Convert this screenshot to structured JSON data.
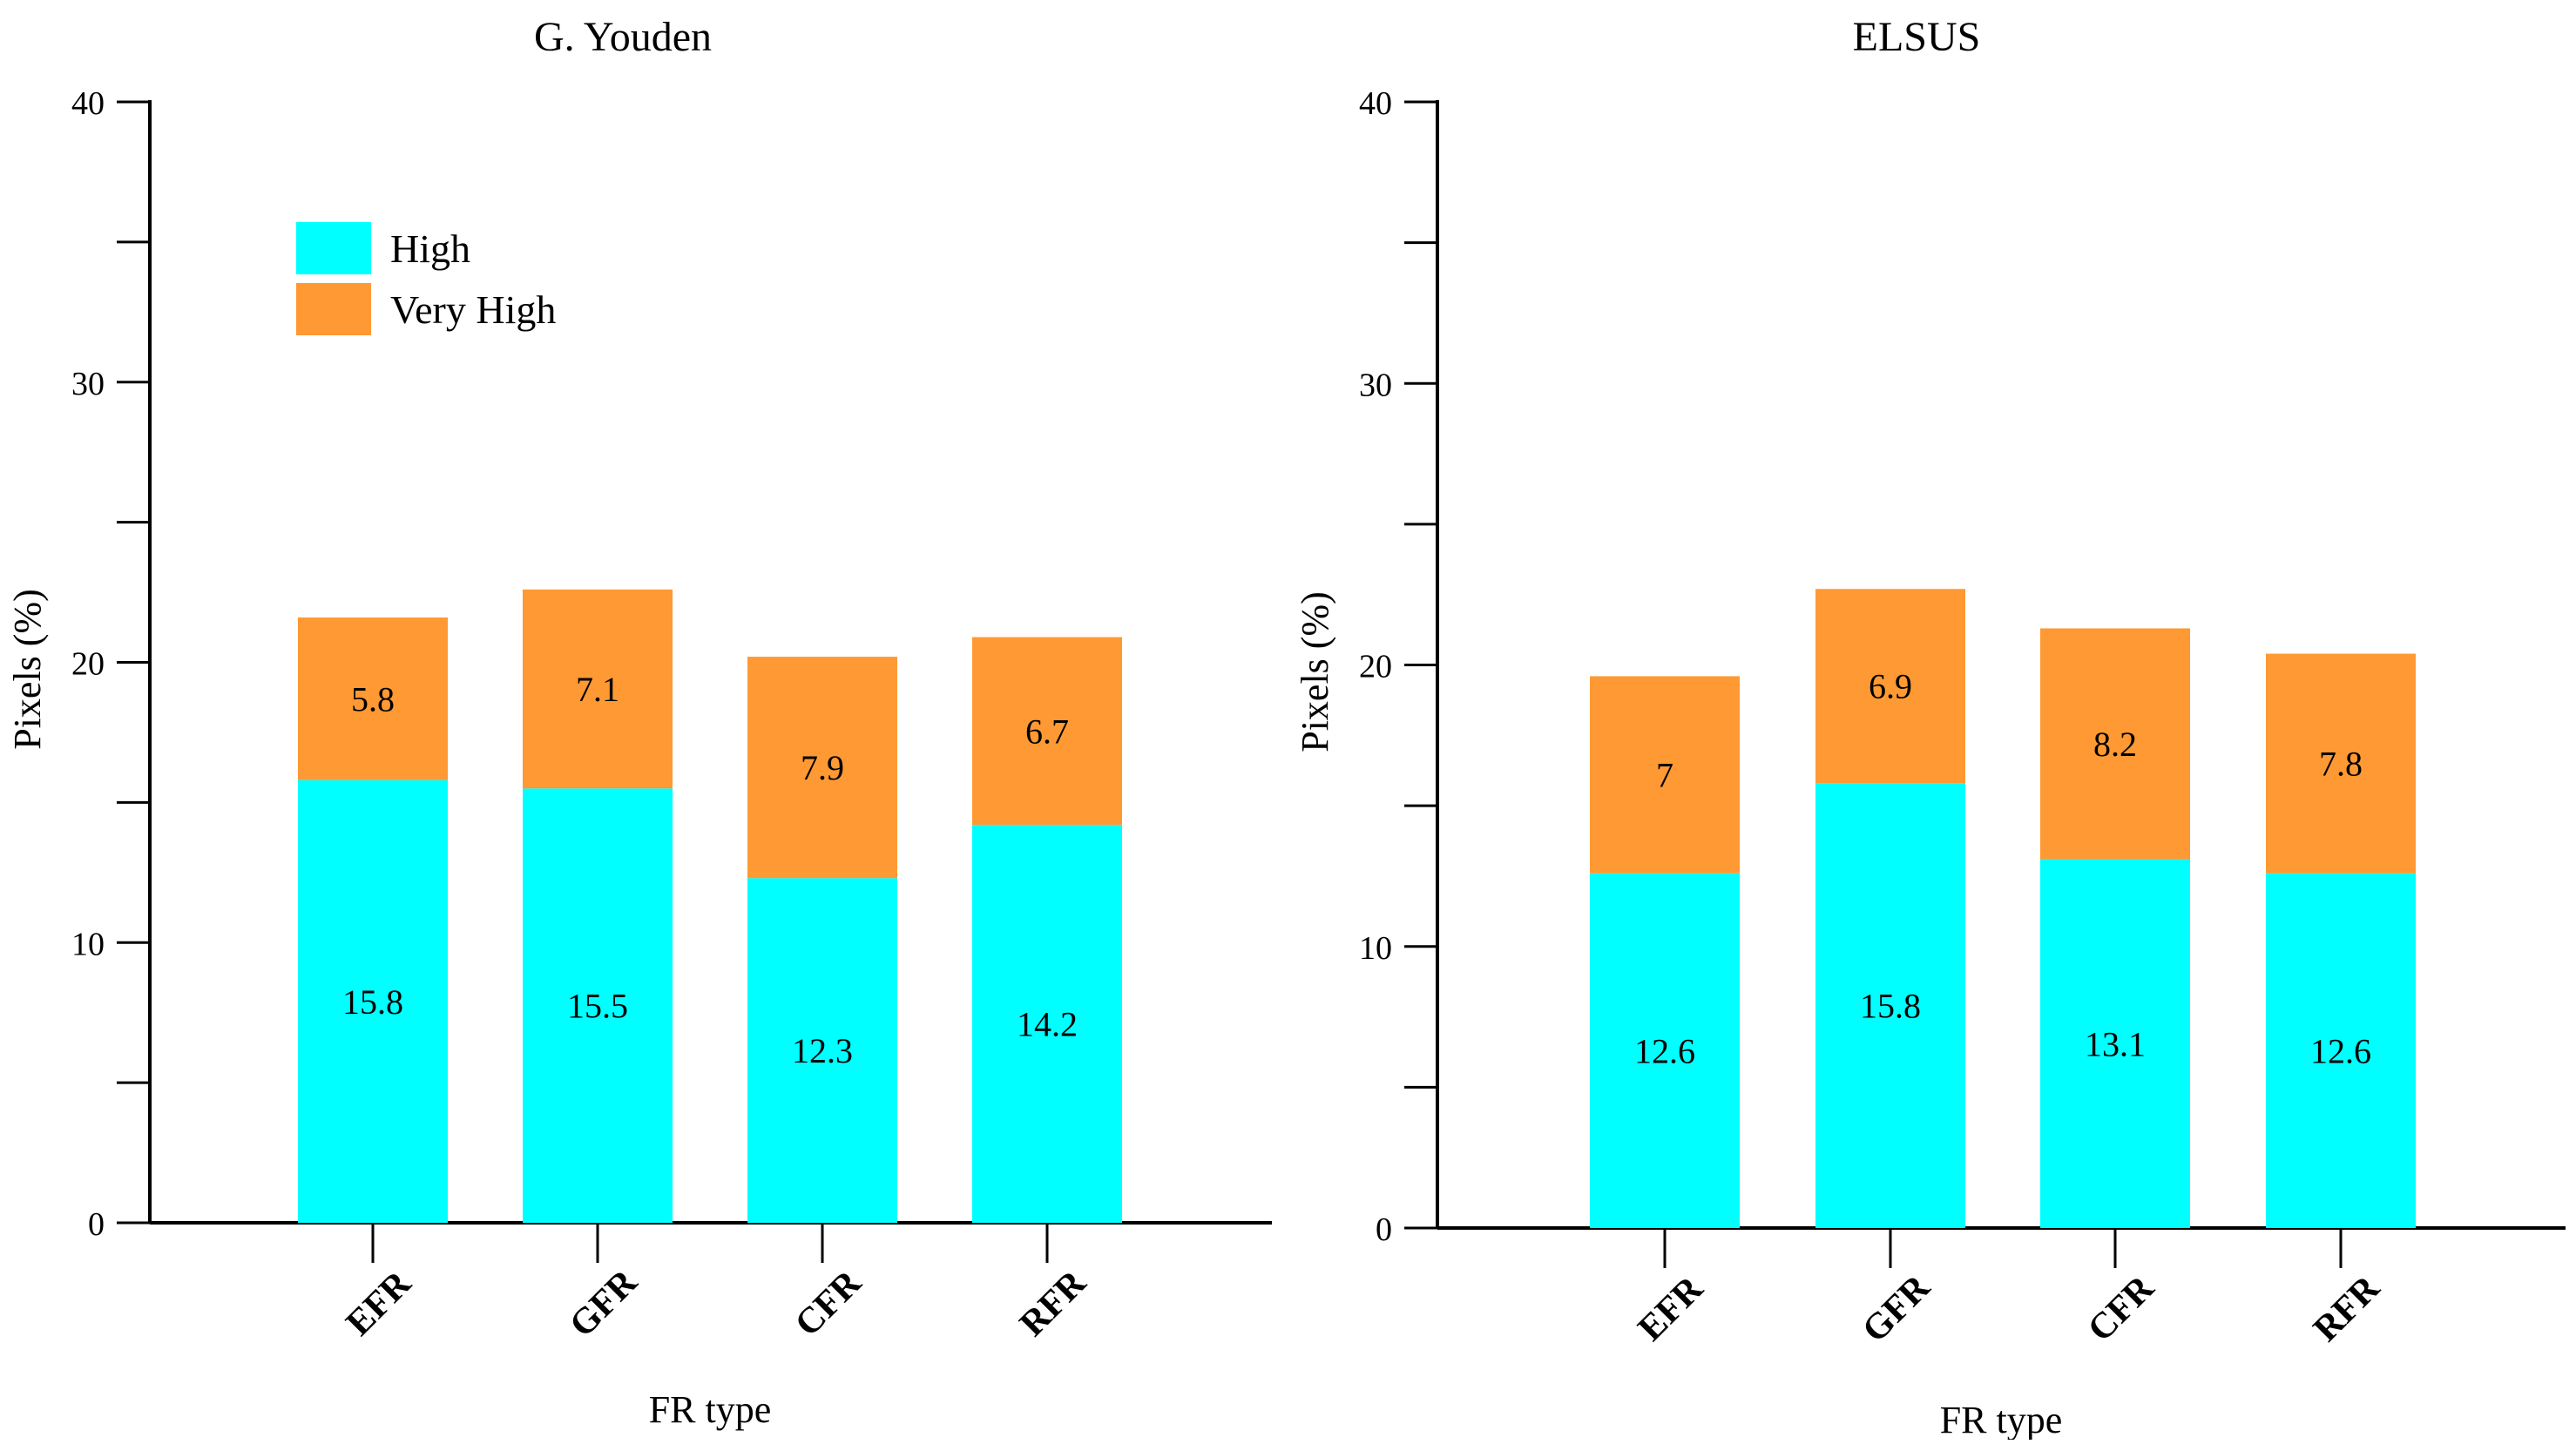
{
  "chart_data": [
    {
      "type": "bar",
      "stacked": true,
      "title": "G. Youden",
      "xlabel": "FR type",
      "ylabel": "Pixels (%)",
      "ylim": [
        0,
        40
      ],
      "yticks": [
        0,
        10,
        20,
        30,
        40
      ],
      "categories": [
        "EFR",
        "GFR",
        "CFR",
        "RFR"
      ],
      "series": [
        {
          "name": "High",
          "color": "#00FFFF",
          "values": [
            15.8,
            15.5,
            12.3,
            14.2
          ]
        },
        {
          "name": "Very High",
          "color": "#FF9933",
          "values": [
            5.8,
            7.1,
            7.9,
            6.7
          ]
        }
      ],
      "legend": [
        "High",
        "Very High"
      ],
      "legend_position": "top-left",
      "grid": false
    },
    {
      "type": "bar",
      "stacked": true,
      "title": "ELSUS",
      "xlabel": "FR type",
      "ylabel": "Pixels (%)",
      "ylim": [
        0,
        40
      ],
      "yticks": [
        0,
        10,
        20,
        30,
        40
      ],
      "categories": [
        "EFR",
        "GFR",
        "CFR",
        "RFR"
      ],
      "series": [
        {
          "name": "High",
          "color": "#00FFFF",
          "values": [
            12.6,
            15.8,
            13.1,
            12.6
          ]
        },
        {
          "name": "Very High",
          "color": "#FF9933",
          "values": [
            7,
            6.9,
            8.2,
            7.8
          ]
        }
      ],
      "grid": false
    }
  ]
}
